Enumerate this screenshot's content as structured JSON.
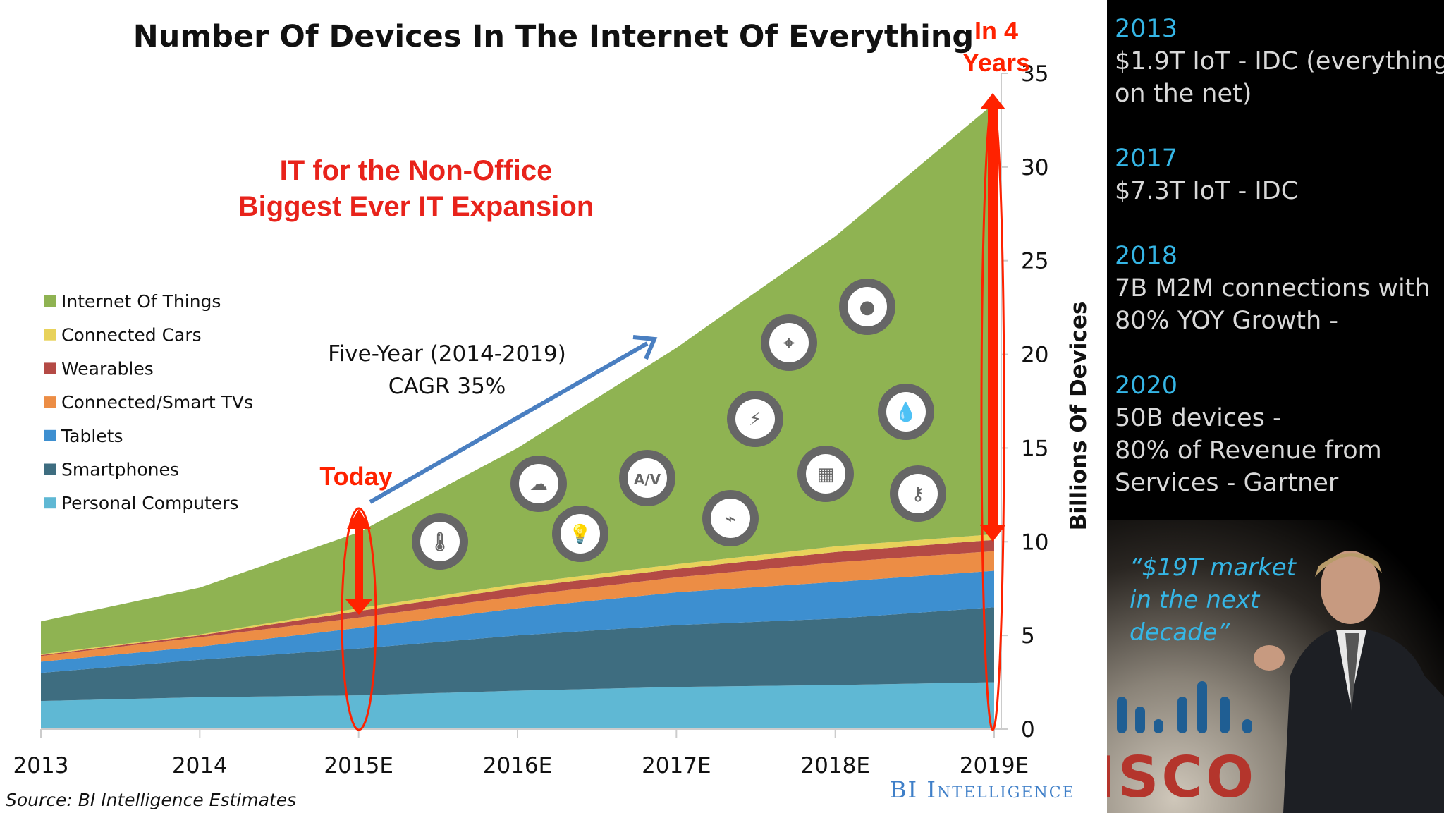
{
  "chart_data": {
    "type": "area",
    "stacked": true,
    "title": "Number Of Devices In The Internet Of Everything",
    "categories": [
      "2013",
      "2014",
      "2015E",
      "2016E",
      "2017E",
      "2018E",
      "2019E"
    ],
    "ylabel": "Billions Of Devices",
    "ylim": [
      0,
      35
    ],
    "yticks": [
      "0",
      "5",
      "10",
      "15",
      "20",
      "25",
      "30",
      "35"
    ],
    "grid": false,
    "legend_position": "left",
    "series": [
      {
        "name": "Personal Computers",
        "color": "#5fb8d4",
        "values": [
          1.5,
          1.7,
          1.8,
          2.05,
          2.25,
          2.35,
          2.5
        ]
      },
      {
        "name": "Smartphones",
        "color": "#3e6d80",
        "values": [
          1.5,
          2.0,
          2.5,
          2.95,
          3.3,
          3.55,
          4.0
        ]
      },
      {
        "name": "Tablets",
        "color": "#3d8fd0",
        "values": [
          0.6,
          0.7,
          1.1,
          1.45,
          1.75,
          1.95,
          1.95
        ]
      },
      {
        "name": "Connected/Smart TVs",
        "color": "#ec8d45",
        "values": [
          0.3,
          0.5,
          0.55,
          0.65,
          0.8,
          1.05,
          1.05
        ]
      },
      {
        "name": "Wearables",
        "color": "#b44a45",
        "values": [
          0.05,
          0.1,
          0.35,
          0.45,
          0.45,
          0.55,
          0.6
        ]
      },
      {
        "name": "Connected Cars",
        "color": "#e8d25a",
        "values": [
          0.05,
          0.05,
          0.15,
          0.2,
          0.25,
          0.3,
          0.3
        ]
      },
      {
        "name": "Internet Of Things",
        "color": "#8fb352",
        "values": [
          1.75,
          2.5,
          4.05,
          7.25,
          11.55,
          16.55,
          23.0
        ]
      }
    ],
    "annotations": {
      "headline_1": "IT for the Non-Office",
      "headline_2": "Biggest Ever IT Expansion",
      "cagr_1": "Five-Year (2014-2019)",
      "cagr_2": "CAGR 35%",
      "today": "Today",
      "in4_1": "In 4",
      "in4_2": "Years"
    },
    "source": "Source: BI Intelligence Estimates",
    "brand": "BI Intelligence",
    "icons": [
      "thermometer-icon",
      "cloud-icon",
      "lightbulb-icon",
      "av-icon",
      "rss-icon",
      "lightning-icon",
      "location-pin-icon",
      "building-icon",
      "person-icon",
      "water-drop-icon",
      "key-icon"
    ],
    "accent_red": "#ff2200",
    "arrow_blue": "#4a7fc1"
  },
  "side_panel": {
    "notes": [
      {
        "year": "2013",
        "lines": [
          "$1.9T IoT - IDC (everything",
          "on the net)"
        ]
      },
      {
        "year": "2017",
        "lines": [
          "$7.3T IoT - IDC"
        ]
      },
      {
        "year": "2018",
        "lines": [
          "7B M2M connections with",
          "80% YOY Growth -"
        ]
      },
      {
        "year": "2020",
        "lines": [
          "50B devices -",
          "80% of Revenue from",
          "Services - Gartner"
        ]
      }
    ],
    "quote": [
      "“$19T market",
      "in the next",
      "decade”"
    ],
    "photo_logo": "ISCO"
  }
}
